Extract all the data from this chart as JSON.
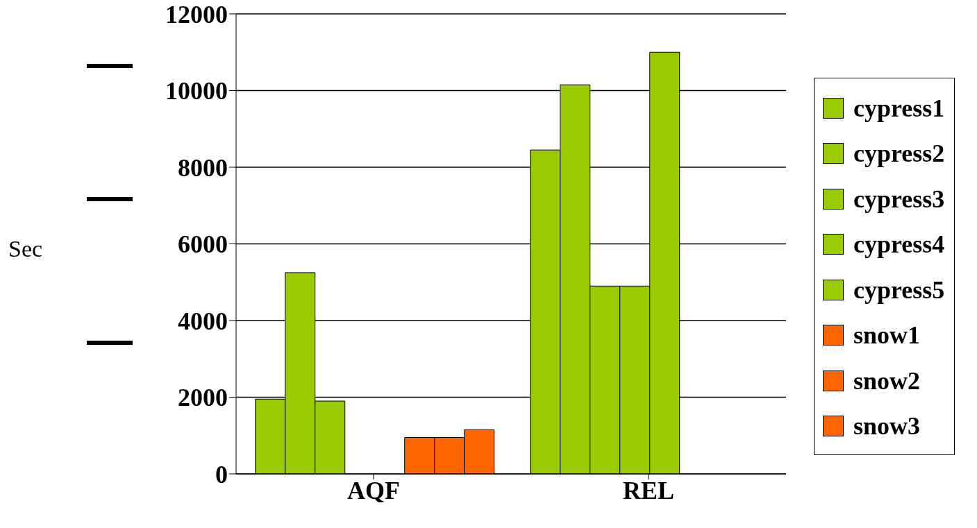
{
  "chart_data": {
    "type": "bar",
    "annotations": [
      "Sec"
    ],
    "categories": [
      "AQF",
      "REL"
    ],
    "series": [
      {
        "name": "cypress1",
        "color": "#99cc00",
        "values": [
          1950,
          8450
        ]
      },
      {
        "name": "cypress2",
        "color": "#99cc00",
        "values": [
          5250,
          10150
        ]
      },
      {
        "name": "cypress3",
        "color": "#99cc00",
        "values": [
          1900,
          4900
        ]
      },
      {
        "name": "cypress4",
        "color": "#99cc00",
        "values": [
          null,
          4900
        ]
      },
      {
        "name": "cypress5",
        "color": "#99cc00",
        "values": [
          null,
          11000
        ]
      },
      {
        "name": "snow1",
        "color": "#ff6600",
        "values": [
          950,
          null
        ]
      },
      {
        "name": "snow2",
        "color": "#ff6600",
        "values": [
          950,
          null
        ]
      },
      {
        "name": "snow3",
        "color": "#ff6600",
        "values": [
          1150,
          null
        ]
      }
    ],
    "ylim": [
      0,
      12000
    ],
    "yticks": [
      0,
      2000,
      4000,
      6000,
      8000,
      10000,
      12000
    ],
    "grid": "y",
    "legend": "right"
  }
}
